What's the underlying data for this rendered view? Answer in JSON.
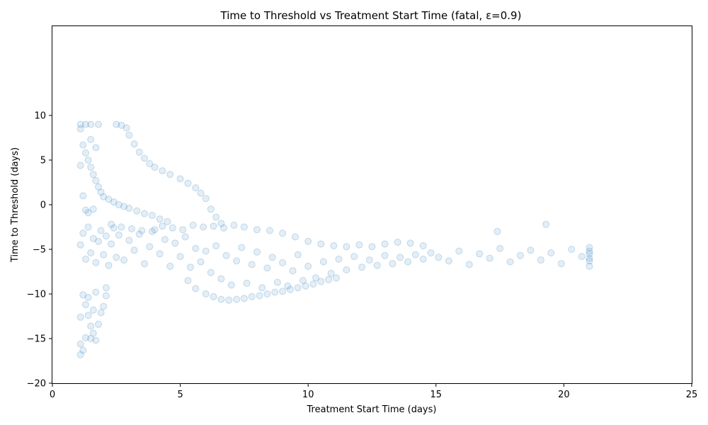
{
  "chart_data": {
    "type": "scatter",
    "title": "Time to Threshold vs Treatment Start Time (fatal, ε=0.9)",
    "xlabel": "Treatment Start Time (days)",
    "ylabel": "Time to Threshold (days)",
    "xlim": [
      0,
      25
    ],
    "ylim": [
      -20,
      20
    ],
    "xticks": [
      0,
      5,
      10,
      15,
      20,
      25
    ],
    "yticks": [
      -20,
      -15,
      -10,
      -5,
      0,
      5,
      10
    ],
    "grid": false,
    "legend": "none",
    "point_color": "#1f77b4",
    "point_alpha": 0.12,
    "series": [
      {
        "points": [
          [
            1.1,
            -4.5
          ],
          [
            1.2,
            -3.2
          ],
          [
            1.3,
            -6.1
          ],
          [
            1.4,
            -2.5
          ],
          [
            1.5,
            -5.4
          ],
          [
            1.6,
            -3.8
          ],
          [
            1.7,
            -6.5
          ],
          [
            1.8,
            -4.1
          ],
          [
            1.9,
            -2.9
          ],
          [
            2.0,
            -5.6
          ],
          [
            2.1,
            -3.5
          ],
          [
            2.2,
            -6.8
          ],
          [
            2.3,
            -4.4
          ],
          [
            2.4,
            -2.6
          ],
          [
            2.5,
            -5.9
          ],
          [
            2.6,
            -3.4
          ],
          [
            2.8,
            -6.2
          ],
          [
            3.0,
            -4.0
          ],
          [
            3.2,
            -5.1
          ],
          [
            3.4,
            -3.3
          ],
          [
            3.6,
            -6.6
          ],
          [
            3.8,
            -4.7
          ],
          [
            4.0,
            -2.8
          ],
          [
            4.2,
            -5.5
          ],
          [
            4.4,
            -3.9
          ],
          [
            4.6,
            -6.9
          ],
          [
            4.8,
            -4.3
          ],
          [
            5.0,
            -5.8
          ],
          [
            5.2,
            -3.6
          ],
          [
            5.4,
            -7.0
          ],
          [
            5.6,
            -4.9
          ],
          [
            5.8,
            -6.4
          ],
          [
            6.0,
            -5.2
          ],
          [
            6.2,
            -7.6
          ],
          [
            6.4,
            -4.6
          ],
          [
            6.6,
            -8.3
          ],
          [
            6.8,
            -5.7
          ],
          [
            7.0,
            -9.0
          ],
          [
            7.2,
            -6.3
          ],
          [
            7.4,
            -4.8
          ],
          [
            7.6,
            -8.8
          ],
          [
            7.8,
            -6.7
          ],
          [
            8.0,
            -5.3
          ],
          [
            8.2,
            -9.3
          ],
          [
            8.4,
            -7.1
          ],
          [
            8.6,
            -5.9
          ],
          [
            8.8,
            -8.7
          ],
          [
            9.0,
            -6.5
          ],
          [
            9.2,
            -9.1
          ],
          [
            9.4,
            -7.4
          ],
          [
            9.6,
            -5.6
          ],
          [
            9.8,
            -8.5
          ],
          [
            10.0,
            -6.9
          ],
          [
            10.3,
            -8.2
          ],
          [
            10.6,
            -6.4
          ],
          [
            10.9,
            -7.7
          ],
          [
            11.2,
            -6.1
          ],
          [
            11.5,
            -7.3
          ],
          [
            11.8,
            -5.8
          ],
          [
            12.1,
            -7.0
          ],
          [
            12.4,
            -6.2
          ],
          [
            12.7,
            -6.8
          ],
          [
            13.0,
            -5.7
          ],
          [
            13.3,
            -6.6
          ],
          [
            13.6,
            -5.9
          ],
          [
            13.9,
            -6.4
          ],
          [
            14.2,
            -5.6
          ],
          [
            14.5,
            -6.1
          ],
          [
            14.8,
            -5.4
          ],
          [
            15.1,
            -5.9
          ],
          [
            15.5,
            -6.3
          ],
          [
            15.9,
            -5.2
          ],
          [
            16.3,
            -6.7
          ],
          [
            16.7,
            -5.5
          ],
          [
            17.1,
            -6.0
          ],
          [
            17.5,
            -4.9
          ],
          [
            17.9,
            -6.4
          ],
          [
            18.3,
            -5.7
          ],
          [
            18.7,
            -5.1
          ],
          [
            19.1,
            -6.2
          ],
          [
            19.5,
            -5.4
          ],
          [
            19.9,
            -6.6
          ],
          [
            20.3,
            -5.0
          ],
          [
            20.7,
            -5.8
          ],
          [
            21.0,
            -6.3
          ],
          [
            21.0,
            -5.5
          ],
          [
            21.0,
            -4.8
          ],
          [
            21.0,
            -6.9
          ],
          [
            21.0,
            -5.2
          ],
          [
            21.0,
            -6.0
          ],
          [
            2.3,
            -2.2
          ],
          [
            2.7,
            -2.5
          ],
          [
            3.1,
            -2.7
          ],
          [
            3.5,
            -2.9
          ],
          [
            3.9,
            -3.0
          ],
          [
            4.3,
            -2.4
          ],
          [
            4.7,
            -2.6
          ],
          [
            5.1,
            -2.8
          ],
          [
            5.5,
            -2.3
          ],
          [
            5.9,
            -2.5
          ],
          [
            6.3,
            -2.4
          ],
          [
            6.7,
            -2.6
          ],
          [
            7.1,
            -2.3
          ],
          [
            7.5,
            -2.5
          ],
          [
            8.0,
            -2.8
          ],
          [
            8.5,
            -2.9
          ],
          [
            9.0,
            -3.2
          ],
          [
            9.5,
            -3.6
          ],
          [
            10.0,
            -4.1
          ],
          [
            10.5,
            -4.4
          ],
          [
            11.0,
            -4.6
          ],
          [
            11.5,
            -4.7
          ],
          [
            12.0,
            -4.5
          ],
          [
            12.5,
            -4.7
          ],
          [
            13.0,
            -4.4
          ],
          [
            13.5,
            -4.2
          ],
          [
            14.0,
            -4.3
          ],
          [
            14.5,
            -4.6
          ],
          [
            17.4,
            -3.0
          ],
          [
            19.3,
            -2.2
          ],
          [
            6.0,
            -10.0
          ],
          [
            6.3,
            -10.3
          ],
          [
            6.6,
            -10.6
          ],
          [
            6.9,
            -10.7
          ],
          [
            7.2,
            -10.6
          ],
          [
            7.5,
            -10.5
          ],
          [
            7.8,
            -10.3
          ],
          [
            8.1,
            -10.2
          ],
          [
            8.4,
            -10.0
          ],
          [
            8.7,
            -9.8
          ],
          [
            9.0,
            -9.7
          ],
          [
            9.3,
            -9.5
          ],
          [
            9.6,
            -9.3
          ],
          [
            9.9,
            -9.1
          ],
          [
            10.2,
            -8.9
          ],
          [
            10.5,
            -8.6
          ],
          [
            10.8,
            -8.4
          ],
          [
            11.1,
            -8.2
          ],
          [
            5.6,
            -9.4
          ],
          [
            5.3,
            -8.5
          ],
          [
            1.1,
            9.0
          ],
          [
            1.3,
            9.0
          ],
          [
            1.5,
            9.0
          ],
          [
            1.8,
            9.0
          ],
          [
            2.5,
            9.0
          ],
          [
            2.7,
            8.9
          ],
          [
            2.9,
            8.6
          ],
          [
            3.0,
            7.8
          ],
          [
            3.2,
            6.8
          ],
          [
            3.4,
            5.9
          ],
          [
            3.6,
            5.2
          ],
          [
            3.8,
            4.6
          ],
          [
            4.0,
            4.2
          ],
          [
            4.3,
            3.8
          ],
          [
            4.6,
            3.4
          ],
          [
            5.0,
            2.9
          ],
          [
            5.3,
            2.4
          ],
          [
            5.6,
            1.9
          ],
          [
            5.8,
            1.3
          ],
          [
            6.0,
            0.7
          ],
          [
            6.2,
            -0.5
          ],
          [
            6.4,
            -1.4
          ],
          [
            6.6,
            -2.1
          ],
          [
            1.2,
            6.7
          ],
          [
            1.3,
            5.8
          ],
          [
            1.4,
            5.0
          ],
          [
            1.5,
            4.2
          ],
          [
            1.6,
            3.4
          ],
          [
            1.7,
            2.7
          ],
          [
            1.8,
            2.0
          ],
          [
            1.9,
            1.4
          ],
          [
            2.0,
            0.9
          ],
          [
            2.2,
            0.6
          ],
          [
            2.4,
            0.3
          ],
          [
            2.6,
            0.0
          ],
          [
            2.8,
            -0.2
          ],
          [
            3.0,
            -0.4
          ],
          [
            3.3,
            -0.7
          ],
          [
            3.6,
            -1.0
          ],
          [
            3.9,
            -1.2
          ],
          [
            4.2,
            -1.6
          ],
          [
            4.5,
            -1.9
          ],
          [
            1.1,
            4.4
          ],
          [
            1.2,
            1.0
          ],
          [
            1.3,
            -0.6
          ],
          [
            1.4,
            -0.9
          ],
          [
            1.6,
            -0.5
          ],
          [
            1.7,
            6.4
          ],
          [
            1.5,
            7.3
          ],
          [
            1.1,
            8.5
          ],
          [
            1.2,
            -10.1
          ],
          [
            1.3,
            -11.2
          ],
          [
            1.4,
            -12.4
          ],
          [
            1.5,
            -13.6
          ],
          [
            1.6,
            -14.4
          ],
          [
            1.7,
            -15.2
          ],
          [
            1.1,
            -15.6
          ],
          [
            1.2,
            -16.3
          ],
          [
            1.3,
            -14.9
          ],
          [
            1.5,
            -15.0
          ],
          [
            1.8,
            -13.4
          ],
          [
            1.9,
            -12.1
          ],
          [
            2.0,
            -11.4
          ],
          [
            2.1,
            -10.2
          ],
          [
            2.1,
            -9.3
          ],
          [
            1.6,
            -11.8
          ],
          [
            1.4,
            -10.4
          ],
          [
            1.1,
            -12.6
          ],
          [
            1.1,
            -16.8
          ],
          [
            1.7,
            -9.8
          ]
        ]
      }
    ]
  }
}
